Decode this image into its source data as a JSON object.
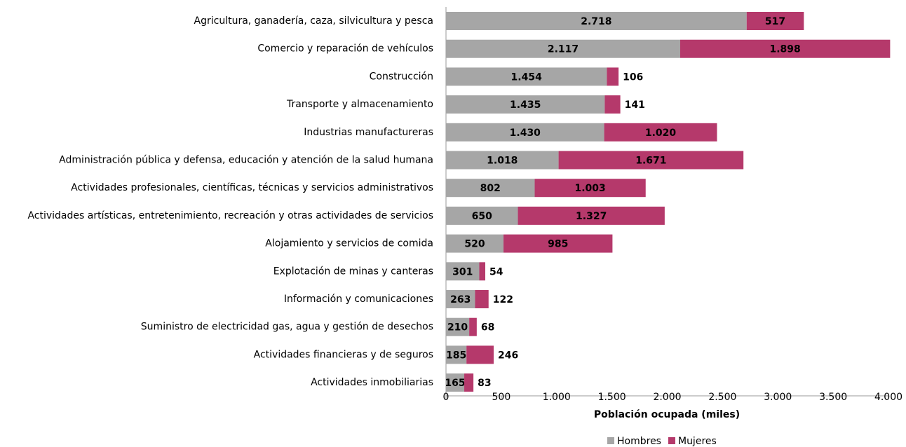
{
  "chart_data": {
    "type": "stacked-bar-horizontal",
    "x_label": "Población ocupada (miles)",
    "categories": [
      "Agricultura, ganadería, caza, silvicultura y pesca",
      "Comercio y reparación de vehículos",
      "Construcción",
      "Transporte y almacenamiento",
      "Industrias manufactureras",
      "Administración pública y defensa, educación y atención de la salud humana",
      "Actividades profesionales, científicas, técnicas y servicios administrativos",
      "Actividades artísticas, entretenimiento, recreación y otras actividades de servicios",
      "Alojamiento y servicios de comida",
      "Explotación de minas y canteras",
      "Información y comunicaciones",
      "Suministro de electricidad gas, agua y gestión de desechos",
      "Actividades financieras y de seguros",
      "Actividades inmobiliarias"
    ],
    "series": [
      {
        "name": "Hombres",
        "color": "#a6a6a6",
        "values": [
          2718,
          2117,
          1454,
          1435,
          1430,
          1018,
          802,
          650,
          520,
          301,
          263,
          210,
          185,
          165
        ],
        "value_labels": [
          "2.718",
          "2.117",
          "1.454",
          "1.435",
          "1.430",
          "1.018",
          "802",
          "650",
          "520",
          "301",
          "263",
          "210",
          "185",
          "165"
        ]
      },
      {
        "name": "Mujeres",
        "color": "#b5396b",
        "values": [
          517,
          1898,
          106,
          141,
          1020,
          1671,
          1003,
          1327,
          985,
          54,
          122,
          68,
          246,
          83
        ],
        "value_labels": [
          "517",
          "1.898",
          "106",
          "141",
          "1.020",
          "1.671",
          "1.003",
          "1.327",
          "985",
          "54",
          "122",
          "68",
          "246",
          "83"
        ]
      }
    ],
    "xlim": [
      0,
      4000
    ],
    "xticks": [
      0,
      500,
      {
        "value": 1000,
        "label": "1.000"
      },
      {
        "value": 1500,
        "label": "1.500"
      },
      {
        "value": 2000,
        "label": "2.000"
      },
      {
        "value": 2500,
        "label": "2.500"
      },
      {
        "value": 3000,
        "label": "3.000"
      },
      {
        "value": 3500,
        "label": "3.500"
      },
      {
        "value": 4000,
        "label": "4.000"
      }
    ],
    "legend": "bottom"
  }
}
